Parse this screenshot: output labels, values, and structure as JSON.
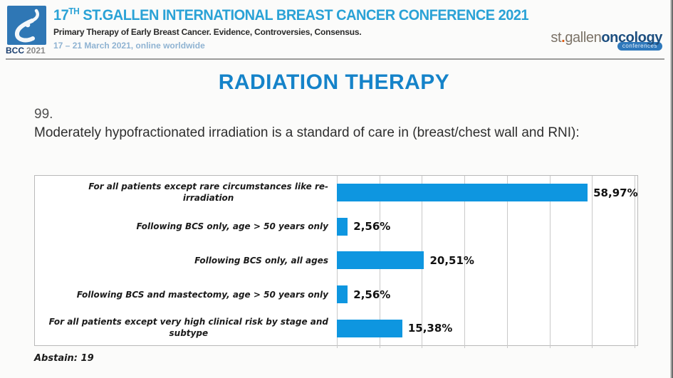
{
  "colors": {
    "header_title": "#2aa2d6",
    "slide_title": "#1583c9",
    "bar": "#0e96e0",
    "dates": "#8fb3d2",
    "brand_gray": "#7b7267",
    "brand_navy": "#1c4e7f",
    "brand_orange": "#dd5a12",
    "logo_square": "#2f77b5",
    "grid_line": "#c9c9c9"
  },
  "header": {
    "logo_text": "BCC",
    "logo_year": "2021",
    "title_num": "17",
    "title_sup": "TH",
    "title_rest": " ST.GALLEN INTERNATIONAL BREAST CANCER CONFERENCE 2021",
    "subtitle": "Primary Therapy of Early Breast Cancer. Evidence, Controversies, Consensus.",
    "dates": "17 – 21 March 2021, online worldwide",
    "brand_st": "st",
    "brand_dot": ".",
    "brand_gallen": "gallen",
    "brand_oncology": "oncology",
    "brand_badge": "conferences"
  },
  "slide": {
    "title": "RADIATION THERAPY",
    "question_number": "99.",
    "question": "Moderately hypofractionated irradiation is a standard of care in (breast/chest wall and RNI):",
    "abstain_label": "Abstain: 19"
  },
  "chart_data": {
    "type": "bar",
    "orientation": "horizontal",
    "title": "",
    "categories": [
      "For all patients except rare circumstances like re-\nirradiation",
      "Following BCS only, age > 50 years only",
      "Following BCS only, all ages",
      "Following BCS and mastectomy, age > 50 years only",
      "For all patients except very high clinical risk by stage and\nsubtype"
    ],
    "values": [
      58.97,
      2.56,
      20.51,
      2.56,
      15.38
    ],
    "value_labels": [
      "58,97%",
      "2,56%",
      "20,51%",
      "2,56%",
      "15,38%"
    ],
    "xlim": [
      0,
      70
    ],
    "grid_step": 10,
    "grid": true,
    "legend": false,
    "bar_color": "#0e96e0"
  }
}
